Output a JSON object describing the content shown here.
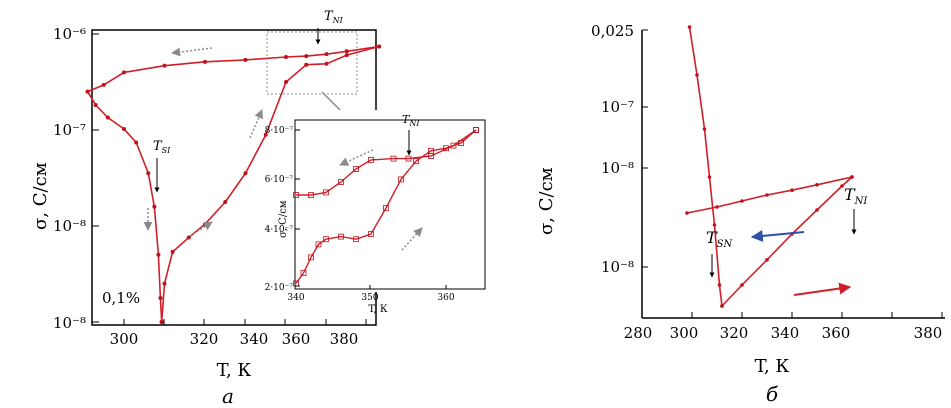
{
  "colors": {
    "curve": "#d11f2a",
    "marker": "#c0111c",
    "arrow_gray": "#8a8a8a",
    "arrow_blue": "#2f4fa8",
    "arrow_red": "#d11f2a",
    "frame": "#000000"
  },
  "panel_a": {
    "letter": "а",
    "ylabel": "σ, С/см",
    "xlabel": "T, К",
    "concentration": "0,1%",
    "y_ticks": [
      "10⁻⁶",
      "10⁻⁷",
      "10⁻⁸",
      "10⁻⁸"
    ],
    "x_ticks": [
      "300",
      "320",
      "340",
      "360",
      "380"
    ],
    "tsi_label": "T",
    "tsi_sub": "SI",
    "tni_label": "T",
    "tni_sub": "NI",
    "inset": {
      "ylabel": "σ, С/см",
      "xlabel": "T, К",
      "y_ticks": [
        "8·10⁻⁷",
        "6·10⁻⁷",
        "4·10⁻⁷",
        "2·10⁻⁷"
      ],
      "x_ticks": [
        "340",
        "350",
        "360"
      ],
      "tni_label": "T",
      "tni_sub": "NI"
    }
  },
  "panel_b": {
    "letter": "б",
    "ylabel": "σ, С/см",
    "xlabel": "T, К",
    "y_ticks": [
      "0,025",
      "10⁻⁷",
      "10⁻⁸",
      "10⁻⁸"
    ],
    "x_ticks": [
      "280",
      "300",
      "320",
      "340",
      "360",
      "380"
    ],
    "tsn_label": "T",
    "tsn_sub": "SN",
    "tni_label": "T",
    "tni_sub": "NI"
  },
  "chart_data": [
    {
      "type": "line",
      "panel": "а",
      "xlabel": "T, К",
      "ylabel": "σ, С/см",
      "xlim": [
        290,
        380
      ],
      "y_tick_labels": [
        "10⁻⁶",
        "10⁻⁷",
        "10⁻⁸",
        "10⁻⁸"
      ],
      "annotations": [
        "T_SI",
        "T_NI",
        "0,1%"
      ],
      "series": [
        {
          "x": [
            363,
            355,
            350,
            345,
            340,
            330,
            320,
            310,
            300,
            295,
            291
          ],
          "y": [
            6.87,
            6.82,
            6.79,
            6.77,
            6.76,
            6.73,
            6.71,
            6.67,
            6.6,
            6.47,
            6.4
          ]
        },
        {
          "x": [
            291,
            293,
            296,
            300,
            303,
            306,
            307.5,
            308.5,
            309,
            309.3
          ],
          "y": [
            6.4,
            6.26,
            6.13,
            6.01,
            5.87,
            5.55,
            5.2,
            4.7,
            4.25,
            4.0
          ]
        },
        {
          "x": [
            309.3,
            310,
            312,
            316,
            320,
            325,
            330,
            335,
            340,
            345,
            350,
            355,
            363
          ],
          "y": [
            4.0,
            4.4,
            4.73,
            4.88,
            5.02,
            5.25,
            5.55,
            5.95,
            6.5,
            6.68,
            6.69,
            6.78,
            6.87
          ]
        }
      ]
    },
    {
      "type": "line",
      "panel": "а inset",
      "xlabel": "T, К",
      "ylabel": "σ, С/см",
      "xlim": [
        340,
        365
      ],
      "ylim": [
        2e-07,
        8e-07
      ],
      "annotations": [
        "T_NI"
      ],
      "series": [
        {
          "x": [
            364,
            361,
            358,
            355,
            353,
            350,
            348,
            346,
            344,
            342,
            340
          ],
          "y": [
            8e-07,
            7.4e-07,
            7e-07,
            6.9e-07,
            6.9e-07,
            6.85e-07,
            6.5e-07,
            6e-07,
            5.6e-07,
            5.5e-07,
            5.5e-07
          ]
        },
        {
          "x": [
            340,
            341,
            342,
            343,
            344,
            346,
            348,
            350,
            352,
            354,
            356,
            358,
            360,
            362,
            364
          ],
          "y": [
            2.1e-07,
            2.5e-07,
            3.1e-07,
            3.6e-07,
            3.8e-07,
            3.9e-07,
            3.8e-07,
            4e-07,
            5e-07,
            6.1e-07,
            6.8e-07,
            7.2e-07,
            7.3e-07,
            7.5e-07,
            8e-07
          ]
        }
      ]
    },
    {
      "type": "line",
      "panel": "б",
      "xlabel": "T, К",
      "ylabel": "σ, С/см",
      "xlim": [
        280,
        380
      ],
      "y_tick_labels": [
        "0,025",
        "10⁻⁷",
        "10⁻⁸",
        "10⁻⁸"
      ],
      "annotations": [
        "T_SN",
        "T_NI"
      ],
      "series": [
        {
          "x": [
            299,
            302,
            305,
            307,
            309,
            311,
            312
          ],
          "y": [
            4.0,
            3.2,
            2.3,
            1.5,
            0.7,
            -0.3,
            -0.65
          ]
        },
        {
          "x": [
            312,
            320,
            330,
            340,
            350,
            360,
            364
          ],
          "y": [
            -0.65,
            -0.3,
            0.12,
            0.55,
            0.95,
            1.35,
            1.5
          ]
        },
        {
          "x": [
            364,
            350,
            340,
            330,
            320,
            310,
            298
          ],
          "y": [
            1.5,
            1.37,
            1.28,
            1.2,
            1.1,
            1.0,
            0.9
          ]
        }
      ]
    }
  ]
}
